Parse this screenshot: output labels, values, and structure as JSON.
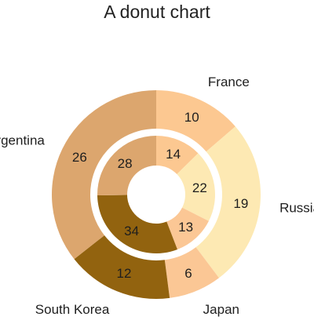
{
  "chart_data": {
    "type": "pie",
    "subtype": "nested-donut",
    "title": "A donut chart",
    "categories": [
      "France",
      "Russia",
      "Japan",
      "South Korea",
      "Argentina"
    ],
    "colors": {
      "France": "#fcc891",
      "Russia": "#fde9b3",
      "Japan": "#fbc795",
      "South Korea": "#92630f",
      "Argentina": "#dca66e"
    },
    "series": [
      {
        "ring": "outer",
        "values": [
          10,
          19,
          6,
          12,
          26
        ]
      },
      {
        "ring": "inner",
        "values": [
          14,
          22,
          13,
          34,
          28
        ]
      }
    ],
    "legend": "none",
    "start_angle": "top",
    "direction": "clockwise"
  }
}
